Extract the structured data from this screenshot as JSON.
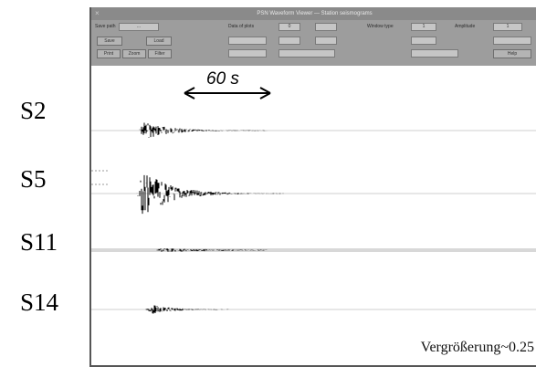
{
  "window": {
    "title": "PSN Waveform Viewer — Station seismograms",
    "close_glyph": "×"
  },
  "toolbar": {
    "fields": [
      {
        "label": "Save path",
        "value": "..."
      },
      {
        "label": "Data of plots",
        "value": "0"
      },
      {
        "label": "Window type",
        "value": "1"
      },
      {
        "label": "Amplitude",
        "value": "1"
      }
    ],
    "buttons": [
      "Save",
      "Load",
      "Print",
      "Zoom",
      "Filter",
      "Help"
    ]
  },
  "stations": [
    {
      "label": "S2"
    },
    {
      "label": "S5"
    },
    {
      "label": "S11"
    },
    {
      "label": "S14"
    }
  ],
  "time_scale": {
    "label": "60 s"
  },
  "gain_label": "Vergrößerung~0.25",
  "colors": {
    "trace": "#000000",
    "toolbar": "#9d9d9d",
    "baseline": "#cfcfcf"
  }
}
